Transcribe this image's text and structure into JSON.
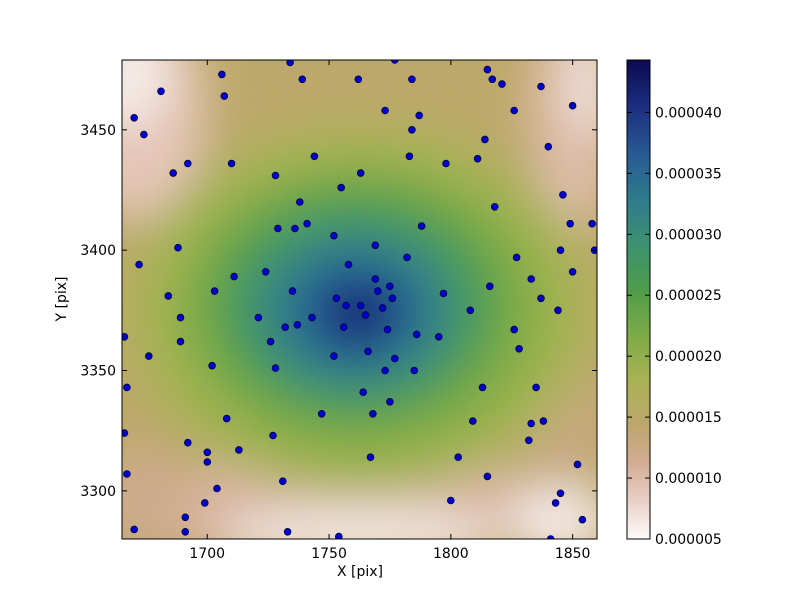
{
  "chart_data": {
    "type": "scatter",
    "title": "",
    "xlabel": "X [pix]",
    "ylabel": "Y [pix]",
    "xlim": [
      1665,
      1860
    ],
    "ylim": [
      3280,
      3479
    ],
    "xticks": [
      1700,
      1750,
      1800,
      1850
    ],
    "yticks": [
      3300,
      3350,
      3400,
      3450
    ],
    "background": {
      "type": "heatmap",
      "colormap": "gist_earth_r",
      "peak": [
        1763,
        3374
      ],
      "description_values": "density field, maximum near center"
    },
    "colorbar": {
      "min": 5e-06,
      "max": 4.43e-05,
      "ticks": [
        "0.000005",
        "0.000010",
        "0.000015",
        "0.000020",
        "0.000025",
        "0.000030",
        "0.000035",
        "0.000040"
      ],
      "tick_values": [
        5e-06,
        1e-05,
        1.5e-05,
        2e-05,
        2.5e-05,
        3e-05,
        3.5e-05,
        4e-05
      ]
    },
    "marker_color": "#0000cc",
    "marker_edge": "#000044",
    "points": [
      [
        1666,
        3324
      ],
      [
        1666,
        3364
      ],
      [
        1667,
        3343
      ],
      [
        1667,
        3307
      ],
      [
        1670,
        3284
      ],
      [
        1670,
        3455
      ],
      [
        1672,
        3394
      ],
      [
        1674,
        3448
      ],
      [
        1676,
        3356
      ],
      [
        1681,
        3466
      ],
      [
        1684,
        3381
      ],
      [
        1686,
        3432
      ],
      [
        1688,
        3401
      ],
      [
        1689,
        3372
      ],
      [
        1689,
        3362
      ],
      [
        1691,
        3283
      ],
      [
        1691,
        3289
      ],
      [
        1692,
        3320
      ],
      [
        1692,
        3436
      ],
      [
        1699,
        3295
      ],
      [
        1700,
        3312
      ],
      [
        1700,
        3316
      ],
      [
        1702,
        3352
      ],
      [
        1703,
        3383
      ],
      [
        1704,
        3301
      ],
      [
        1706,
        3473
      ],
      [
        1707,
        3464
      ],
      [
        1708,
        3330
      ],
      [
        1710,
        3436
      ],
      [
        1711,
        3389
      ],
      [
        1713,
        3317
      ],
      [
        1721,
        3372
      ],
      [
        1724,
        3391
      ],
      [
        1726,
        3362
      ],
      [
        1727,
        3323
      ],
      [
        1728,
        3351
      ],
      [
        1728,
        3431
      ],
      [
        1729,
        3409
      ],
      [
        1731,
        3304
      ],
      [
        1732,
        3368
      ],
      [
        1733,
        3283
      ],
      [
        1734,
        3478
      ],
      [
        1735,
        3383
      ],
      [
        1736,
        3409
      ],
      [
        1737,
        3369
      ],
      [
        1738,
        3420
      ],
      [
        1739,
        3471
      ],
      [
        1741,
        3411
      ],
      [
        1743,
        3372
      ],
      [
        1744,
        3439
      ],
      [
        1747,
        3332
      ],
      [
        1752,
        3356
      ],
      [
        1752,
        3406
      ],
      [
        1753,
        3380
      ],
      [
        1754,
        3281
      ],
      [
        1755,
        3426
      ],
      [
        1756,
        3368
      ],
      [
        1757,
        3377
      ],
      [
        1758,
        3394
      ],
      [
        1762,
        3471
      ],
      [
        1763,
        3377
      ],
      [
        1763,
        3432
      ],
      [
        1764,
        3341
      ],
      [
        1765,
        3373
      ],
      [
        1766,
        3358
      ],
      [
        1767,
        3314
      ],
      [
        1768,
        3332
      ],
      [
        1769,
        3388
      ],
      [
        1769,
        3402
      ],
      [
        1770,
        3383
      ],
      [
        1772,
        3376
      ],
      [
        1773,
        3350
      ],
      [
        1773,
        3458
      ],
      [
        1774,
        3367
      ],
      [
        1775,
        3385
      ],
      [
        1775,
        3337
      ],
      [
        1776,
        3380
      ],
      [
        1777,
        3355
      ],
      [
        1777,
        3479
      ],
      [
        1782,
        3397
      ],
      [
        1783,
        3439
      ],
      [
        1784,
        3471
      ],
      [
        1784,
        3450
      ],
      [
        1785,
        3350
      ],
      [
        1786,
        3365
      ],
      [
        1787,
        3456
      ],
      [
        1788,
        3410
      ],
      [
        1795,
        3364
      ],
      [
        1797,
        3382
      ],
      [
        1798,
        3436
      ],
      [
        1800,
        3296
      ],
      [
        1803,
        3314
      ],
      [
        1808,
        3375
      ],
      [
        1809,
        3329
      ],
      [
        1811,
        3438
      ],
      [
        1813,
        3343
      ],
      [
        1814,
        3446
      ],
      [
        1815,
        3306
      ],
      [
        1815,
        3475
      ],
      [
        1816,
        3385
      ],
      [
        1817,
        3471
      ],
      [
        1818,
        3418
      ],
      [
        1821,
        3469
      ],
      [
        1826,
        3367
      ],
      [
        1826,
        3458
      ],
      [
        1827,
        3397
      ],
      [
        1828,
        3359
      ],
      [
        1832,
        3321
      ],
      [
        1833,
        3328
      ],
      [
        1833,
        3388
      ],
      [
        1835,
        3343
      ],
      [
        1837,
        3380
      ],
      [
        1837,
        3468
      ],
      [
        1838,
        3329
      ],
      [
        1840,
        3443
      ],
      [
        1841,
        3280
      ],
      [
        1843,
        3295
      ],
      [
        1844,
        3375
      ],
      [
        1845,
        3400
      ],
      [
        1845,
        3299
      ],
      [
        1846,
        3423
      ],
      [
        1849,
        3411
      ],
      [
        1850,
        3460
      ],
      [
        1850,
        3391
      ],
      [
        1852,
        3311
      ],
      [
        1854,
        3288
      ],
      [
        1858,
        3411
      ],
      [
        1859,
        3400
      ]
    ]
  }
}
